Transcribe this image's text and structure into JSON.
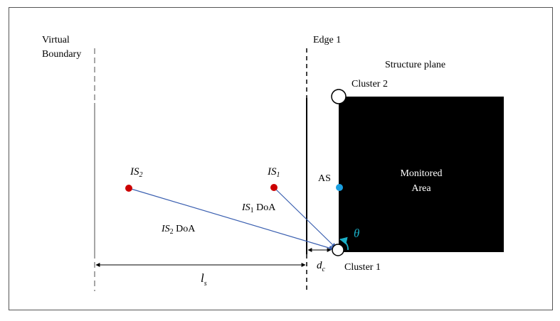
{
  "labels": {
    "virtual_boundary_line1": "Virtual",
    "virtual_boundary_line2": "Boundary",
    "edge1": "Edge 1",
    "structure_plane": "Structure plane",
    "cluster2": "Cluster 2",
    "cluster1": "Cluster 1",
    "monitored_area_line1": "Monitored",
    "monitored_area_line2": "Area",
    "as": "AS",
    "is2": "IS",
    "is2_sub": "2",
    "is1": "IS",
    "is1_sub": "1",
    "is1_doa": "IS",
    "is1_doa_sub": "1",
    "is1_doa_suffix": " DoA",
    "is2_doa": "IS",
    "is2_doa_sub": "2",
    "is2_doa_suffix": " DoA",
    "theta": "θ",
    "dc": "d",
    "dc_sub": "c",
    "ls": "l",
    "ls_sub": "s"
  },
  "colors": {
    "monitored_area": "#000000",
    "interferer": "#cc0000",
    "anchor_sensor": "#1a9fe0",
    "doa_line": "#3a5fb0",
    "theta_arc": "#1ab0c8",
    "border": "#555555"
  }
}
